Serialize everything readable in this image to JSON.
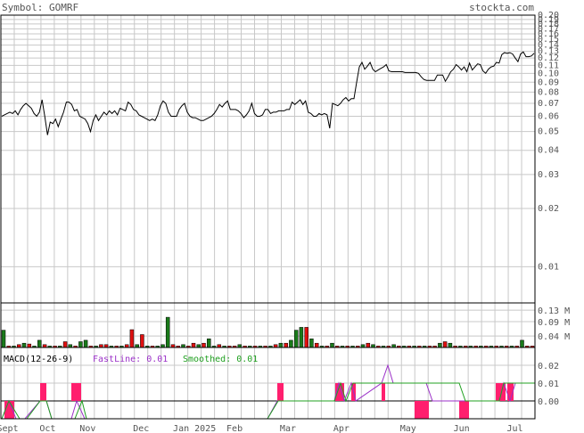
{
  "header": {
    "symbol_label": "Symbol: GOMRF",
    "site": "stockta.com"
  },
  "colors": {
    "grid": "#c8c8c8",
    "frame": "#000000",
    "price_line": "#000000",
    "vol_up": "#1a7a1a",
    "vol_down": "#e01010",
    "macd_fast": "#9b30c8",
    "macd_smoothed": "#20a020",
    "macd_hist": "#ff1f6e",
    "label_text": "#555555"
  },
  "chart_data": [
    {
      "id": "price",
      "type": "line",
      "scale": "log",
      "ylim": [
        0.0065,
        0.2
      ],
      "y_ticks": [
        0.2,
        0.19,
        0.18,
        0.17,
        0.16,
        0.15,
        0.14,
        0.13,
        0.12,
        0.11,
        0.1,
        0.09,
        0.08,
        0.07,
        0.06,
        0.05,
        0.04,
        0.03,
        0.02,
        0.01
      ],
      "y_tick_labels": [
        "0.20",
        "0.19",
        "0.18",
        "0.17",
        "0.16",
        "0.15",
        "0.14",
        "0.13",
        "0.12",
        "0.11",
        "0.10",
        "0.09",
        "0.08",
        "0.07",
        "0.06",
        "0.05",
        "0.04",
        "0.03",
        "0.02",
        "0.01"
      ],
      "x_labels": [
        "Sept",
        "Oct",
        "Nov",
        "Dec",
        "Jan 2025",
        "Feb",
        "Mar",
        "Apr",
        "May",
        "Jun",
        "Jul"
      ],
      "x_label_pos": [
        0.5,
        3.5,
        6.5,
        10.5,
        14.5,
        17.5,
        21.5,
        25.5,
        30.5,
        34.5,
        38.5
      ],
      "values": [
        0.06,
        0.061,
        0.062,
        0.063,
        0.062,
        0.064,
        0.061,
        0.065,
        0.068,
        0.07,
        0.068,
        0.066,
        0.062,
        0.06,
        0.063,
        0.073,
        0.06,
        0.048,
        0.056,
        0.055,
        0.058,
        0.053,
        0.058,
        0.063,
        0.071,
        0.071,
        0.069,
        0.064,
        0.065,
        0.06,
        0.059,
        0.058,
        0.055,
        0.05,
        0.057,
        0.061,
        0.057,
        0.06,
        0.063,
        0.061,
        0.064,
        0.062,
        0.064,
        0.061,
        0.066,
        0.065,
        0.064,
        0.071,
        0.069,
        0.065,
        0.064,
        0.061,
        0.06,
        0.059,
        0.058,
        0.057,
        0.058,
        0.057,
        0.061,
        0.068,
        0.072,
        0.07,
        0.063,
        0.06,
        0.06,
        0.06,
        0.065,
        0.068,
        0.07,
        0.063,
        0.06,
        0.059,
        0.059,
        0.058,
        0.057,
        0.057,
        0.058,
        0.059,
        0.06,
        0.062,
        0.065,
        0.069,
        0.067,
        0.07,
        0.072,
        0.065,
        0.065,
        0.065,
        0.064,
        0.062,
        0.059,
        0.061,
        0.064,
        0.07,
        0.062,
        0.06,
        0.06,
        0.061,
        0.065,
        0.065,
        0.062,
        0.063,
        0.063,
        0.064,
        0.064,
        0.064,
        0.065,
        0.065,
        0.071,
        0.069,
        0.071,
        0.073,
        0.069,
        0.072,
        0.063,
        0.062,
        0.06,
        0.06,
        0.062,
        0.061,
        0.062,
        0.061,
        0.052,
        0.07,
        0.069,
        0.068,
        0.07,
        0.073,
        0.075,
        0.072,
        0.074,
        0.074,
        0.09,
        0.108,
        0.114,
        0.105,
        0.109,
        0.114,
        0.105,
        0.102,
        0.104,
        0.106,
        0.108,
        0.111,
        0.103,
        0.102,
        0.102,
        0.102,
        0.102,
        0.102,
        0.101,
        0.101,
        0.101,
        0.101,
        0.101,
        0.1,
        0.096,
        0.093,
        0.092,
        0.092,
        0.092,
        0.092,
        0.098,
        0.098,
        0.098,
        0.091,
        0.096,
        0.102,
        0.105,
        0.111,
        0.108,
        0.104,
        0.108,
        0.102,
        0.113,
        0.104,
        0.108,
        0.112,
        0.111,
        0.103,
        0.1,
        0.105,
        0.108,
        0.109,
        0.114,
        0.113,
        0.125,
        0.128,
        0.127,
        0.128,
        0.126,
        0.12,
        0.115,
        0.126,
        0.129,
        0.122,
        0.122,
        0.123,
        0.127
      ]
    },
    {
      "id": "volume",
      "type": "bar",
      "y_tick_labels": [
        "0.13 M",
        "0.09 M",
        "0.04 M"
      ],
      "y_ticks": [
        0.13,
        0.09,
        0.04
      ],
      "ylim": [
        0,
        0.155
      ],
      "values": [
        0.06,
        0.005,
        0.005,
        0.01,
        0.015,
        0.012,
        0.005,
        0.025,
        0.01,
        0.005,
        0.005,
        0.005,
        0.02,
        0.01,
        0.005,
        0.02,
        0.025,
        0.005,
        0.005,
        0.01,
        0.01,
        0.005,
        0.005,
        0.005,
        0.01,
        0.062,
        0.01,
        0.045,
        0.005,
        0.005,
        0.005,
        0.01,
        0.105,
        0.01,
        0.005,
        0.01,
        0.005,
        0.015,
        0.01,
        0.015,
        0.03,
        0.005,
        0.01,
        0.005,
        0.005,
        0.005,
        0.01,
        0.005,
        0.005,
        0.005,
        0.005,
        0.005,
        0.005,
        0.01,
        0.015,
        0.015,
        0.025,
        0.06,
        0.07,
        0.07,
        0.03,
        0.015,
        0.005,
        0.005,
        0.015,
        0.005,
        0.005,
        0.005,
        0.005,
        0.005,
        0.01,
        0.015,
        0.01,
        0.005,
        0.005,
        0.005,
        0.01,
        0.005,
        0.005,
        0.005,
        0.005,
        0.005,
        0.005,
        0.005,
        0.005,
        0.015,
        0.02,
        0.015,
        0.005,
        0.005,
        0.005,
        0.005,
        0.005,
        0.005,
        0.005,
        0.005,
        0.005,
        0.005,
        0.005,
        0.005,
        0.005,
        0.025,
        0.005,
        0.005
      ],
      "up": [
        true,
        false,
        true,
        false,
        true,
        false,
        true,
        true,
        false,
        true,
        false,
        true,
        false,
        true,
        false,
        true,
        true,
        false,
        true,
        false,
        false,
        true,
        false,
        true,
        false,
        false,
        true,
        false,
        true,
        false,
        true,
        true,
        true,
        false,
        false,
        true,
        false,
        false,
        true,
        false,
        true,
        true,
        false,
        true,
        false,
        false,
        true,
        false,
        true,
        false,
        true,
        false,
        true,
        false,
        true,
        false,
        true,
        true,
        true,
        false,
        true,
        false,
        true,
        false,
        true,
        false,
        true,
        false,
        true,
        false,
        true,
        false,
        true,
        false,
        true,
        false,
        true,
        false,
        true,
        false,
        true,
        false,
        true,
        false,
        false,
        true,
        false,
        true,
        false,
        true,
        false,
        true,
        false,
        true,
        false,
        true,
        false,
        true,
        false,
        true,
        false,
        true,
        false,
        false
      ]
    },
    {
      "id": "macd",
      "type": "line",
      "title": "MACD(12-26-9)",
      "series": [
        {
          "name": "FastLine",
          "label": "FastLine: 0.01"
        },
        {
          "name": "Smoothed",
          "label": "Smoothed: 0.01"
        }
      ],
      "y_ticks": [
        0.02,
        0.01,
        0.0
      ],
      "y_tick_labels": [
        "0.02",
        "0.01",
        "0.00"
      ]
    }
  ]
}
